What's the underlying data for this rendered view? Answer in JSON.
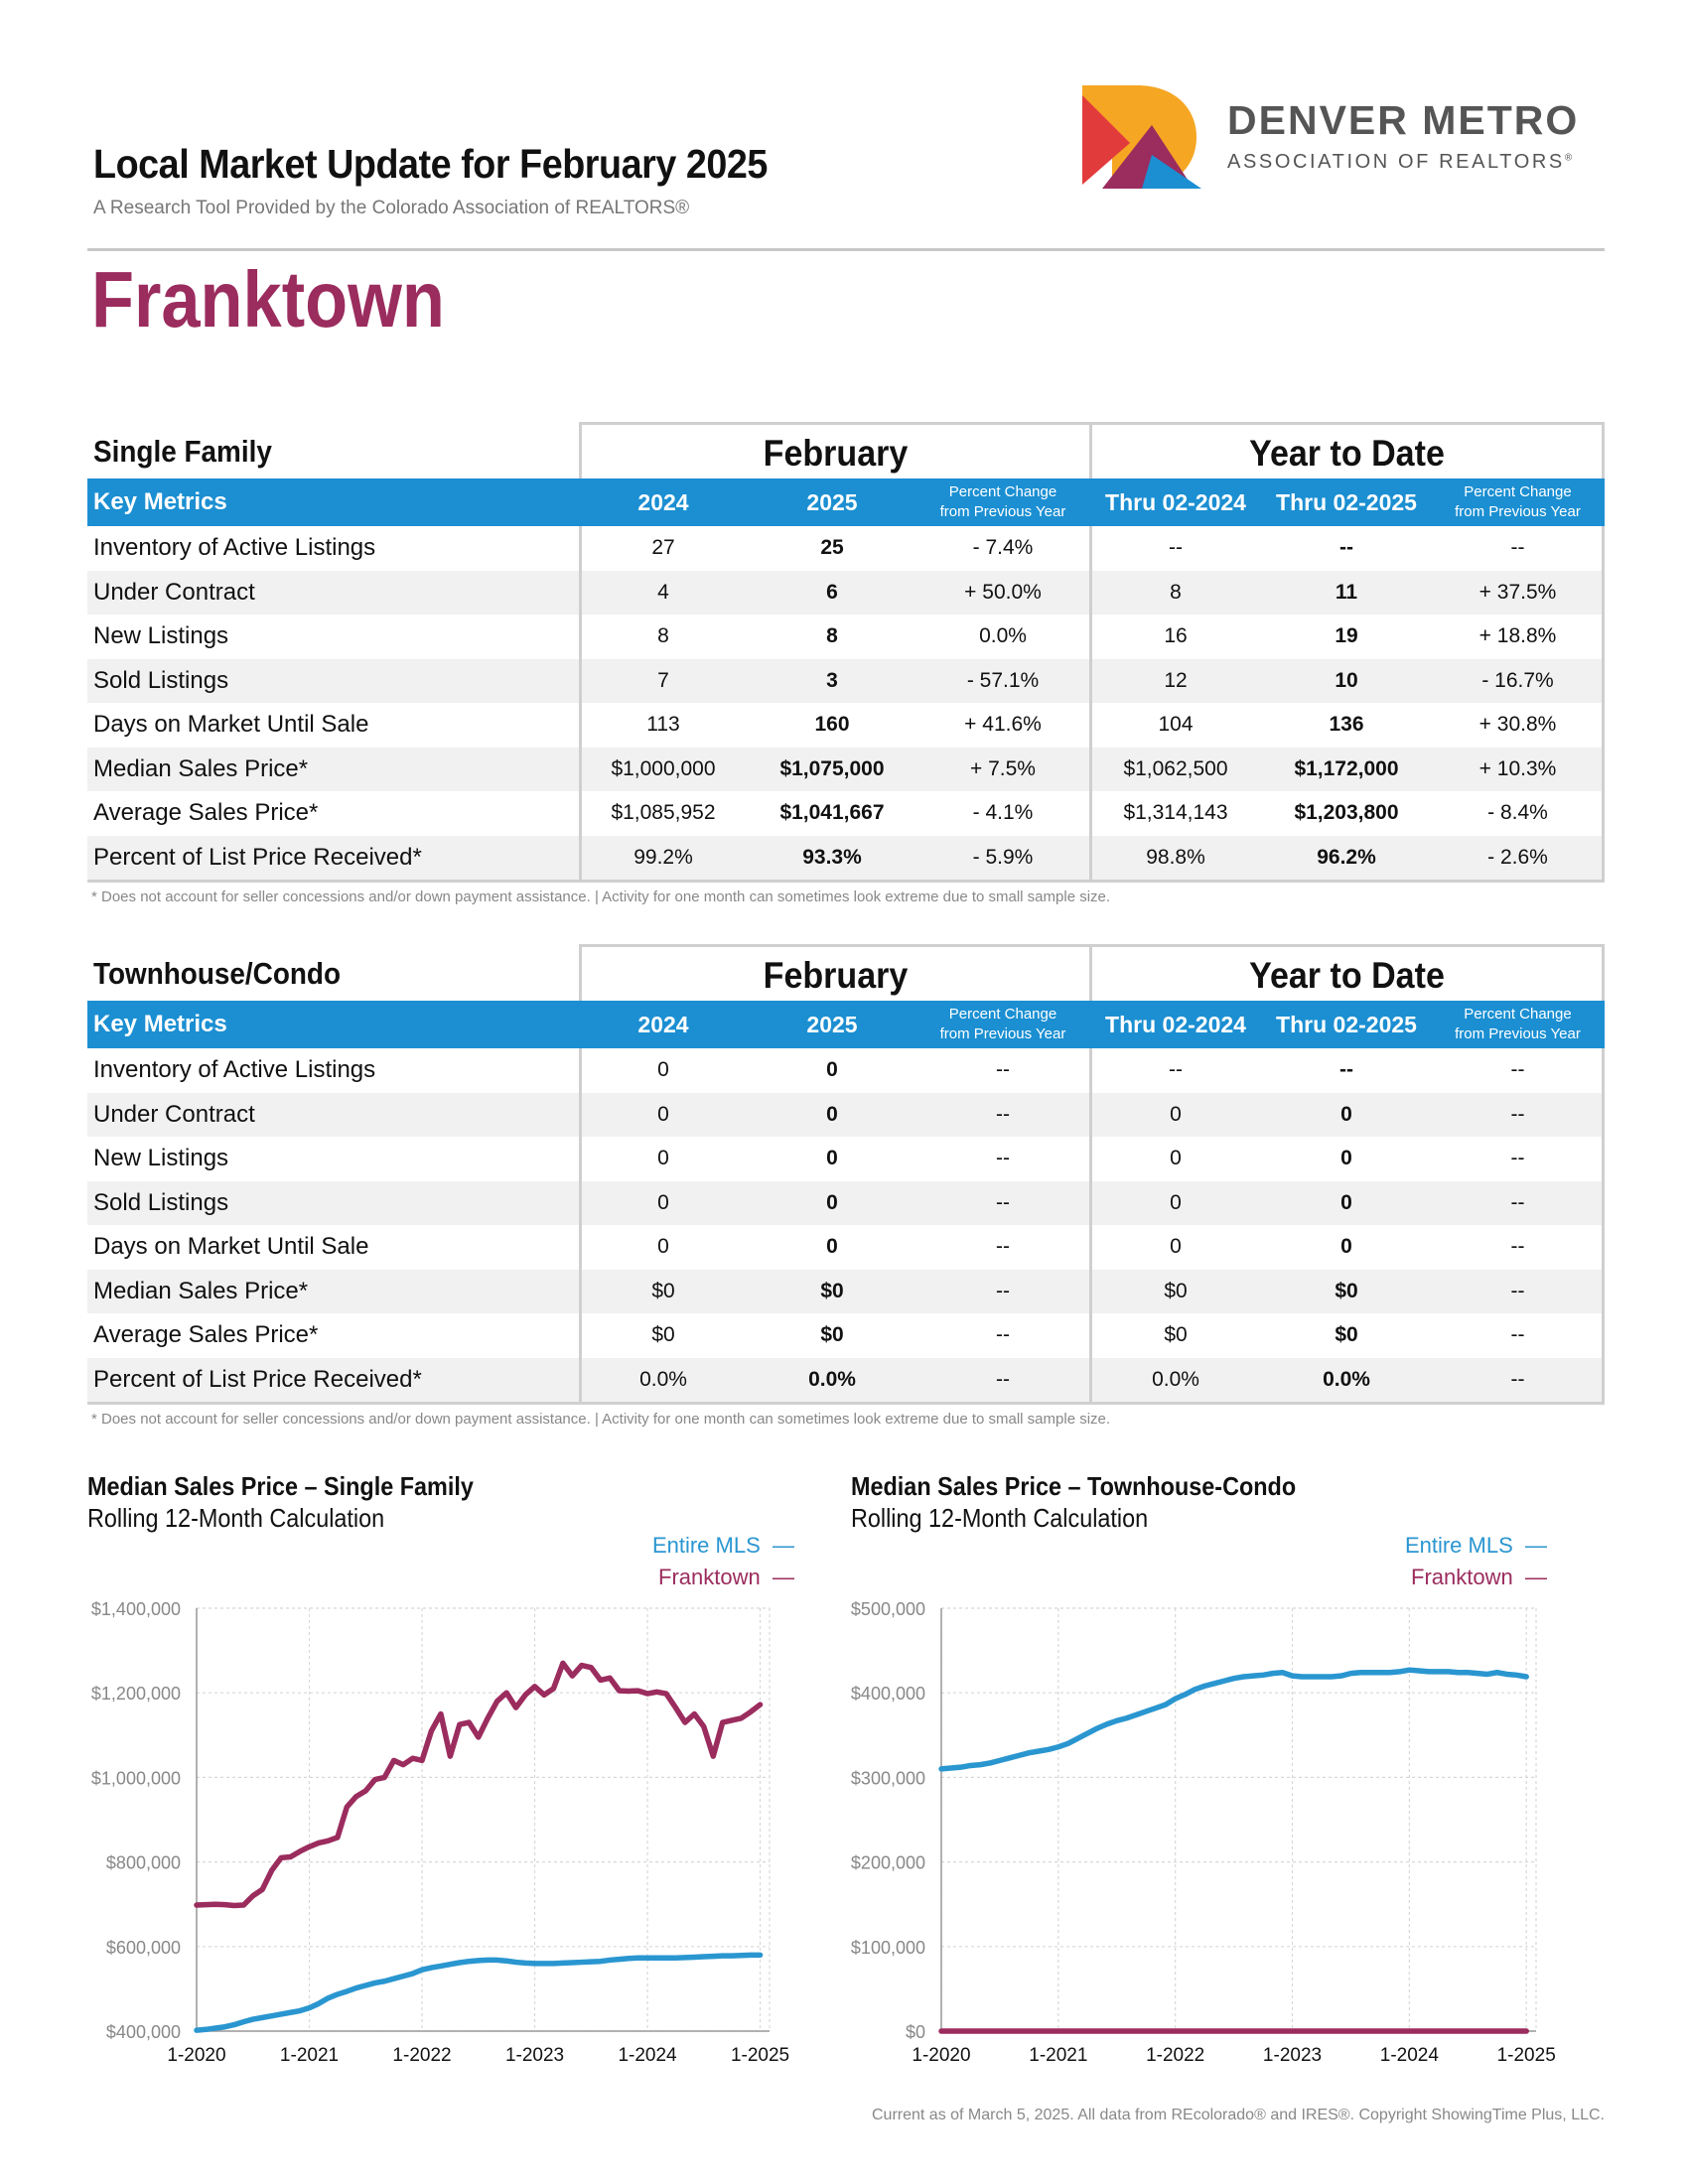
{
  "header": {
    "title": "Local Market Update for February 2025",
    "subtitle": "A Research Tool Provided by the Colorado Association of REALTORS®",
    "area": "Franktown",
    "logo_line1": "DENVER METRO",
    "logo_line2": "ASSOCIATION OF REALTORS",
    "logo_mark": "®"
  },
  "colors": {
    "accent": "#9b2c5e",
    "blue": "#1b8fd2",
    "mls": "#2a96d0",
    "area": "#9b2c5e"
  },
  "col_headers": {
    "key_metrics": "Key Metrics",
    "feb": "February",
    "ytd": "Year to Date",
    "y2024": "2024",
    "y2025": "2025",
    "pct_line1": "Percent Change",
    "pct_line2": "from Previous Year",
    "thru2024": "Thru 02-2024",
    "thru2025": "Thru 02-2025"
  },
  "single_family": {
    "title": "Single Family",
    "rows": [
      {
        "metric": "Inventory of Active Listings",
        "v2024": "27",
        "v2025": "25",
        "chg": "- 7.4%",
        "ytd2024": "--",
        "ytd2025": "--",
        "ytdchg": "--"
      },
      {
        "metric": "Under Contract",
        "v2024": "4",
        "v2025": "6",
        "chg": "+ 50.0%",
        "ytd2024": "8",
        "ytd2025": "11",
        "ytdchg": "+ 37.5%"
      },
      {
        "metric": "New Listings",
        "v2024": "8",
        "v2025": "8",
        "chg": "0.0%",
        "ytd2024": "16",
        "ytd2025": "19",
        "ytdchg": "+ 18.8%"
      },
      {
        "metric": "Sold Listings",
        "v2024": "7",
        "v2025": "3",
        "chg": "- 57.1%",
        "ytd2024": "12",
        "ytd2025": "10",
        "ytdchg": "- 16.7%"
      },
      {
        "metric": "Days on Market Until Sale",
        "v2024": "113",
        "v2025": "160",
        "chg": "+ 41.6%",
        "ytd2024": "104",
        "ytd2025": "136",
        "ytdchg": "+ 30.8%"
      },
      {
        "metric": "Median Sales Price*",
        "v2024": "$1,000,000",
        "v2025": "$1,075,000",
        "chg": "+ 7.5%",
        "ytd2024": "$1,062,500",
        "ytd2025": "$1,172,000",
        "ytdchg": "+ 10.3%"
      },
      {
        "metric": "Average Sales Price*",
        "v2024": "$1,085,952",
        "v2025": "$1,041,667",
        "chg": "- 4.1%",
        "ytd2024": "$1,314,143",
        "ytd2025": "$1,203,800",
        "ytdchg": "- 8.4%"
      },
      {
        "metric": "Percent of List Price Received*",
        "v2024": "99.2%",
        "v2025": "93.3%",
        "chg": "- 5.9%",
        "ytd2024": "98.8%",
        "ytd2025": "96.2%",
        "ytdchg": "- 2.6%"
      }
    ]
  },
  "townhouse": {
    "title": "Townhouse/Condo",
    "rows": [
      {
        "metric": "Inventory of Active Listings",
        "v2024": "0",
        "v2025": "0",
        "chg": "--",
        "ytd2024": "--",
        "ytd2025": "--",
        "ytdchg": "--"
      },
      {
        "metric": "Under Contract",
        "v2024": "0",
        "v2025": "0",
        "chg": "--",
        "ytd2024": "0",
        "ytd2025": "0",
        "ytdchg": "--"
      },
      {
        "metric": "New Listings",
        "v2024": "0",
        "v2025": "0",
        "chg": "--",
        "ytd2024": "0",
        "ytd2025": "0",
        "ytdchg": "--"
      },
      {
        "metric": "Sold Listings",
        "v2024": "0",
        "v2025": "0",
        "chg": "--",
        "ytd2024": "0",
        "ytd2025": "0",
        "ytdchg": "--"
      },
      {
        "metric": "Days on Market Until Sale",
        "v2024": "0",
        "v2025": "0",
        "chg": "--",
        "ytd2024": "0",
        "ytd2025": "0",
        "ytdchg": "--"
      },
      {
        "metric": "Median Sales Price*",
        "v2024": "$0",
        "v2025": "$0",
        "chg": "--",
        "ytd2024": "$0",
        "ytd2025": "$0",
        "ytdchg": "--"
      },
      {
        "metric": "Average Sales Price*",
        "v2024": "$0",
        "v2025": "$0",
        "chg": "--",
        "ytd2024": "$0",
        "ytd2025": "$0",
        "ytdchg": "--"
      },
      {
        "metric": "Percent of List Price Received*",
        "v2024": "0.0%",
        "v2025": "0.0%",
        "chg": "--",
        "ytd2024": "0.0%",
        "ytd2025": "0.0%",
        "ytdchg": "--"
      }
    ]
  },
  "footnote": "* Does not account for seller concessions and/or down payment assistance.  |  Activity for one month can sometimes look extreme due to small sample size.",
  "footer": "Current as of March 5, 2025. All data from REcolorado® and IRES®. Copyright ShowingTime Plus, LLC.",
  "chart_data": [
    {
      "type": "line",
      "title": "Median Sales Price – Single Family",
      "subtitle": "Rolling 12-Month Calculation",
      "legend": [
        "Entire MLS",
        "Franktown"
      ],
      "legend_dash": "—",
      "ylim": [
        400000,
        1400000
      ],
      "yticks": [
        400000,
        600000,
        800000,
        1000000,
        1200000,
        1400000
      ],
      "ytick_labels": [
        "$400,000",
        "$600,000",
        "$800,000",
        "$1,000,000",
        "$1,200,000",
        "$1,400,000"
      ],
      "xlim": [
        0,
        61
      ],
      "xticks": [
        0,
        12,
        24,
        36,
        48,
        60
      ],
      "xtick_labels": [
        "1-2020",
        "1-2021",
        "1-2022",
        "1-2023",
        "1-2024",
        "1-2025"
      ],
      "series": [
        {
          "name": "Entire MLS",
          "color": "#2a96d0",
          "values": [
            402000,
            404000,
            407000,
            410000,
            415000,
            422000,
            428000,
            432000,
            436000,
            440000,
            444000,
            448000,
            455000,
            465000,
            478000,
            487000,
            494000,
            502000,
            508000,
            514000,
            518000,
            524000,
            530000,
            536000,
            545000,
            550000,
            554000,
            558000,
            562000,
            565000,
            567000,
            568000,
            568000,
            566000,
            563000,
            561000,
            560000,
            560000,
            560000,
            561000,
            562000,
            563000,
            564000,
            565000,
            568000,
            570000,
            572000,
            573000,
            573000,
            573000,
            573000,
            573000,
            574000,
            575000,
            576000,
            577000,
            578000,
            578000,
            579000,
            580000,
            580000
          ]
        },
        {
          "name": "Franktown",
          "color": "#9b2c5e",
          "values": [
            698000,
            699000,
            700000,
            699000,
            697000,
            698000,
            720000,
            735000,
            780000,
            810000,
            812000,
            825000,
            836000,
            845000,
            850000,
            858000,
            930000,
            955000,
            968000,
            995000,
            1000000,
            1040000,
            1030000,
            1045000,
            1040000,
            1110000,
            1150000,
            1050000,
            1125000,
            1130000,
            1095000,
            1140000,
            1180000,
            1200000,
            1165000,
            1195000,
            1215000,
            1195000,
            1210000,
            1270000,
            1240000,
            1265000,
            1260000,
            1230000,
            1235000,
            1205000,
            1204000,
            1205000,
            1198000,
            1202000,
            1198000,
            1165000,
            1130000,
            1150000,
            1120000,
            1050000,
            1130000,
            1135000,
            1140000,
            1155000,
            1172000
          ]
        }
      ]
    },
    {
      "type": "line",
      "title": "Median Sales Price – Townhouse-Condo",
      "subtitle": "Rolling 12-Month Calculation",
      "legend": [
        "Entire MLS",
        "Franktown"
      ],
      "legend_dash": "—",
      "ylim": [
        0,
        500000
      ],
      "yticks": [
        0,
        100000,
        200000,
        300000,
        400000,
        500000
      ],
      "ytick_labels": [
        "$0",
        "$100,000",
        "$200,000",
        "$300,000",
        "$400,000",
        "$500,000"
      ],
      "xlim": [
        0,
        61
      ],
      "xticks": [
        0,
        12,
        24,
        36,
        48,
        60
      ],
      "xtick_labels": [
        "1-2020",
        "1-2021",
        "1-2022",
        "1-2023",
        "1-2024",
        "1-2025"
      ],
      "series": [
        {
          "name": "Entire MLS",
          "color": "#2a96d0",
          "values": [
            310000,
            311000,
            312000,
            314000,
            315000,
            317000,
            320000,
            323000,
            326000,
            329000,
            331000,
            333000,
            336000,
            340000,
            346000,
            352000,
            358000,
            363000,
            367000,
            370000,
            374000,
            378000,
            382000,
            386000,
            393000,
            398000,
            404000,
            408000,
            411000,
            414000,
            417000,
            419000,
            420000,
            421000,
            423000,
            424000,
            420000,
            419000,
            419000,
            419000,
            419000,
            420000,
            423000,
            424000,
            424000,
            424000,
            424000,
            425000,
            427000,
            426000,
            425000,
            425000,
            425000,
            424000,
            424000,
            423000,
            422000,
            424000,
            422000,
            421000,
            419000
          ]
        },
        {
          "name": "Franktown",
          "color": "#9b2c5e",
          "values": [
            0,
            0,
            0,
            0,
            0,
            0,
            0,
            0,
            0,
            0,
            0,
            0,
            0,
            0,
            0,
            0,
            0,
            0,
            0,
            0,
            0,
            0,
            0,
            0,
            0,
            0,
            0,
            0,
            0,
            0,
            0,
            0,
            0,
            0,
            0,
            0,
            0,
            0,
            0,
            0,
            0,
            0,
            0,
            0,
            0,
            0,
            0,
            0,
            0,
            0,
            0,
            0,
            0,
            0,
            0,
            0,
            0,
            0,
            0,
            0,
            0
          ]
        }
      ]
    }
  ]
}
